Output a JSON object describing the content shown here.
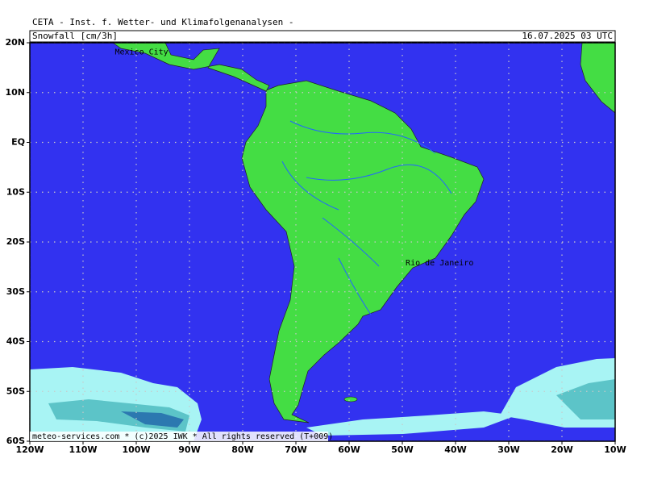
{
  "header": {
    "title": "CETA - Inst. f. Wetter- und Klimafolgenanalysen -",
    "field": "Snowfall [cm/3h]",
    "valid_time": "16.07.2025 03 UTC"
  },
  "footer": "meteo-services.com * (c)2025 IWK * All rights reserved (T+009)",
  "map": {
    "latlim": [
      20,
      -60
    ],
    "lonlim": [
      -120,
      -10
    ],
    "lat_ticks": [
      {
        "value": 20,
        "label": "20N"
      },
      {
        "value": 10,
        "label": "10N"
      },
      {
        "value": 0,
        "label": "EQ"
      },
      {
        "value": -10,
        "label": "10S"
      },
      {
        "value": -20,
        "label": "20S"
      },
      {
        "value": -30,
        "label": "30S"
      },
      {
        "value": -40,
        "label": "40S"
      },
      {
        "value": -50,
        "label": "50S"
      },
      {
        "value": -60,
        "label": "60S"
      }
    ],
    "lon_ticks": [
      {
        "value": -120,
        "label": "120W"
      },
      {
        "value": -110,
        "label": "110W"
      },
      {
        "value": -100,
        "label": "100W"
      },
      {
        "value": -90,
        "label": "90W"
      },
      {
        "value": -80,
        "label": "80W"
      },
      {
        "value": -70,
        "label": "70W"
      },
      {
        "value": -60,
        "label": "60W"
      },
      {
        "value": -50,
        "label": "50W"
      },
      {
        "value": -40,
        "label": "40W"
      },
      {
        "value": -30,
        "label": "30W"
      },
      {
        "value": -20,
        "label": "20W"
      },
      {
        "value": -10,
        "label": "10W"
      }
    ],
    "cities": [
      {
        "name": "Mexico City",
        "lon": -99,
        "lat": 19.4
      },
      {
        "name": "Rio de Janeiro",
        "lon": -43,
        "lat": -22.9
      }
    ]
  }
}
